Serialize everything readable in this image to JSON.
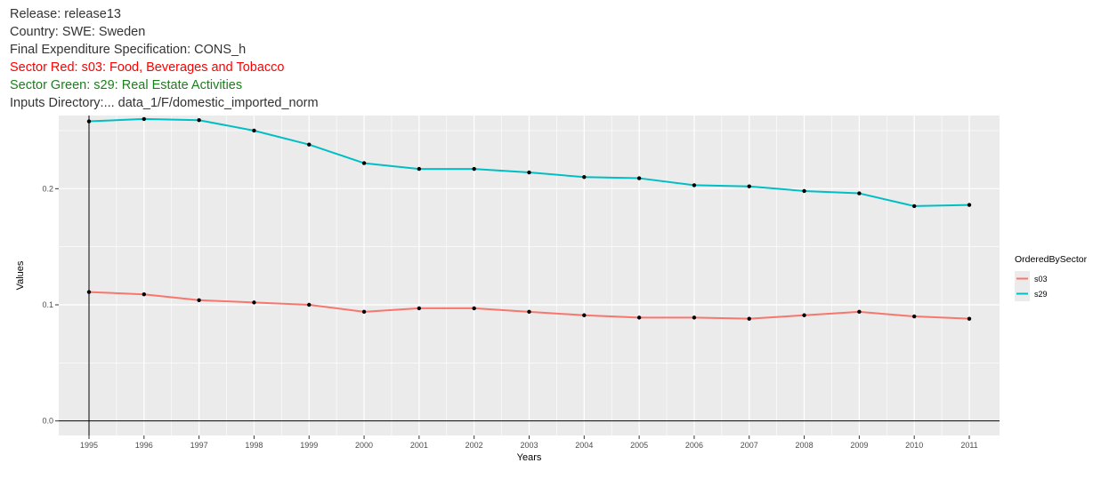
{
  "header": {
    "lines": [
      "Release: release13",
      "Country: SWE: Sweden",
      "Final Expenditure Specification: CONS_h",
      "Sector Red: s03: Food, Beverages and Tobacco",
      "Sector Green: s29: Real Estate Activities",
      "Inputs Directory:... data_1/F/domestic_imported_norm"
    ]
  },
  "colors": {
    "s03": "#f8766d",
    "s29": "#00bfc4",
    "panel": "#ebebeb",
    "grid": "#ffffff",
    "point": "#000000",
    "title_red": "#ff0000",
    "title_green": "#1b7f1b"
  },
  "chart_data": {
    "type": "line",
    "xlabel": "Years",
    "ylabel": "Values",
    "x": [
      1995,
      1996,
      1997,
      1998,
      1999,
      2000,
      2001,
      2002,
      2003,
      2004,
      2005,
      2006,
      2007,
      2008,
      2009,
      2010,
      2011
    ],
    "xlim": [
      1994.45,
      2011.55
    ],
    "ylim": [
      -0.0125,
      0.263
    ],
    "yticks": [
      0.0,
      0.1,
      0.2
    ],
    "ytick_labels": [
      "0.0",
      "0.1",
      "0.2"
    ],
    "grid": true,
    "points_shown": true,
    "legend": {
      "title": "OrderedBySector",
      "position": "right"
    },
    "series": [
      {
        "name": "s03",
        "color": "#f8766d",
        "values": [
          0.111,
          0.109,
          0.104,
          0.102,
          0.1,
          0.094,
          0.097,
          0.097,
          0.094,
          0.091,
          0.089,
          0.089,
          0.088,
          0.091,
          0.094,
          0.09,
          0.088
        ]
      },
      {
        "name": "s29",
        "color": "#00bfc4",
        "values": [
          0.258,
          0.26,
          0.259,
          0.25,
          0.238,
          0.222,
          0.217,
          0.217,
          0.214,
          0.21,
          0.209,
          0.203,
          0.202,
          0.198,
          0.196,
          0.185,
          0.186
        ]
      }
    ]
  }
}
